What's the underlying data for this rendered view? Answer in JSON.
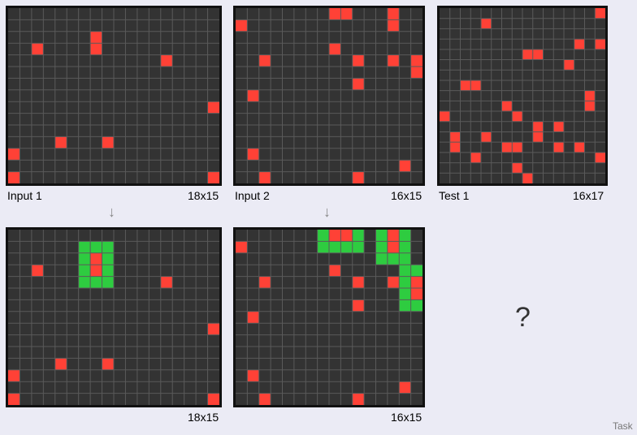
{
  "colors": {
    "bg": "#333333",
    "line": "#5a5a5a",
    "red": "#ff4136",
    "green": "#2ecc40"
  },
  "labels": {
    "input1": "Input 1",
    "input1_size": "18x15",
    "input2": "Input 2",
    "input2_size": "16x15",
    "test1": "Test 1",
    "test1_size": "16x17",
    "output1_size": "18x15",
    "output2_size": "16x15",
    "question": "?",
    "task": "Task",
    "arrow": "↓"
  },
  "grids": {
    "input1": {
      "cols": 18,
      "rows": 15,
      "red": [
        [
          7,
          2
        ],
        [
          2,
          3
        ],
        [
          7,
          3
        ],
        [
          13,
          4
        ],
        [
          17,
          8
        ],
        [
          4,
          11
        ],
        [
          8,
          11
        ],
        [
          0,
          12
        ],
        [
          0,
          14
        ],
        [
          17,
          14
        ]
      ],
      "green": []
    },
    "output1": {
      "cols": 18,
      "rows": 15,
      "red": [
        [
          7,
          2
        ],
        [
          2,
          3
        ],
        [
          7,
          3
        ],
        [
          13,
          4
        ],
        [
          17,
          8
        ],
        [
          4,
          11
        ],
        [
          8,
          11
        ],
        [
          0,
          12
        ],
        [
          0,
          14
        ],
        [
          17,
          14
        ]
      ],
      "green": [
        [
          6,
          1
        ],
        [
          7,
          1
        ],
        [
          8,
          1
        ],
        [
          6,
          2
        ],
        [
          8,
          2
        ],
        [
          6,
          3
        ],
        [
          8,
          3
        ],
        [
          6,
          4
        ],
        [
          7,
          4
        ],
        [
          8,
          4
        ]
      ]
    },
    "input2": {
      "cols": 16,
      "rows": 15,
      "red": [
        [
          8,
          0
        ],
        [
          9,
          0
        ],
        [
          13,
          0
        ],
        [
          0,
          1
        ],
        [
          13,
          1
        ],
        [
          8,
          3
        ],
        [
          2,
          4
        ],
        [
          10,
          4
        ],
        [
          13,
          4
        ],
        [
          15,
          4
        ],
        [
          15,
          5
        ],
        [
          10,
          6
        ],
        [
          1,
          7
        ],
        [
          1,
          12
        ],
        [
          14,
          13
        ],
        [
          2,
          14
        ],
        [
          10,
          14
        ]
      ],
      "green": []
    },
    "output2": {
      "cols": 16,
      "rows": 15,
      "red": [
        [
          8,
          0
        ],
        [
          9,
          0
        ],
        [
          13,
          0
        ],
        [
          0,
          1
        ],
        [
          13,
          1
        ],
        [
          8,
          3
        ],
        [
          2,
          4
        ],
        [
          10,
          4
        ],
        [
          13,
          4
        ],
        [
          15,
          4
        ],
        [
          15,
          5
        ],
        [
          10,
          6
        ],
        [
          1,
          7
        ],
        [
          1,
          12
        ],
        [
          14,
          13
        ],
        [
          2,
          14
        ],
        [
          10,
          14
        ]
      ],
      "green": [
        [
          7,
          0
        ],
        [
          10,
          0
        ],
        [
          12,
          0
        ],
        [
          14,
          0
        ],
        [
          7,
          1
        ],
        [
          8,
          1
        ],
        [
          9,
          1
        ],
        [
          10,
          1
        ],
        [
          12,
          1
        ],
        [
          14,
          1
        ],
        [
          12,
          2
        ],
        [
          13,
          2
        ],
        [
          14,
          2
        ],
        [
          14,
          3
        ],
        [
          15,
          3
        ],
        [
          14,
          4
        ],
        [
          14,
          5
        ],
        [
          14,
          6
        ],
        [
          15,
          6
        ]
      ]
    },
    "test1": {
      "cols": 16,
      "rows": 17,
      "red": [
        [
          15,
          0
        ],
        [
          4,
          1
        ],
        [
          13,
          3
        ],
        [
          15,
          3
        ],
        [
          8,
          4
        ],
        [
          9,
          4
        ],
        [
          12,
          5
        ],
        [
          2,
          7
        ],
        [
          3,
          7
        ],
        [
          14,
          8
        ],
        [
          6,
          9
        ],
        [
          14,
          9
        ],
        [
          0,
          10
        ],
        [
          7,
          10
        ],
        [
          9,
          11
        ],
        [
          11,
          11
        ],
        [
          1,
          12
        ],
        [
          4,
          12
        ],
        [
          9,
          12
        ],
        [
          1,
          13
        ],
        [
          6,
          13
        ],
        [
          7,
          13
        ],
        [
          11,
          13
        ],
        [
          13,
          13
        ],
        [
          3,
          14
        ],
        [
          15,
          14
        ],
        [
          7,
          15
        ],
        [
          8,
          16
        ]
      ],
      "green": []
    }
  }
}
